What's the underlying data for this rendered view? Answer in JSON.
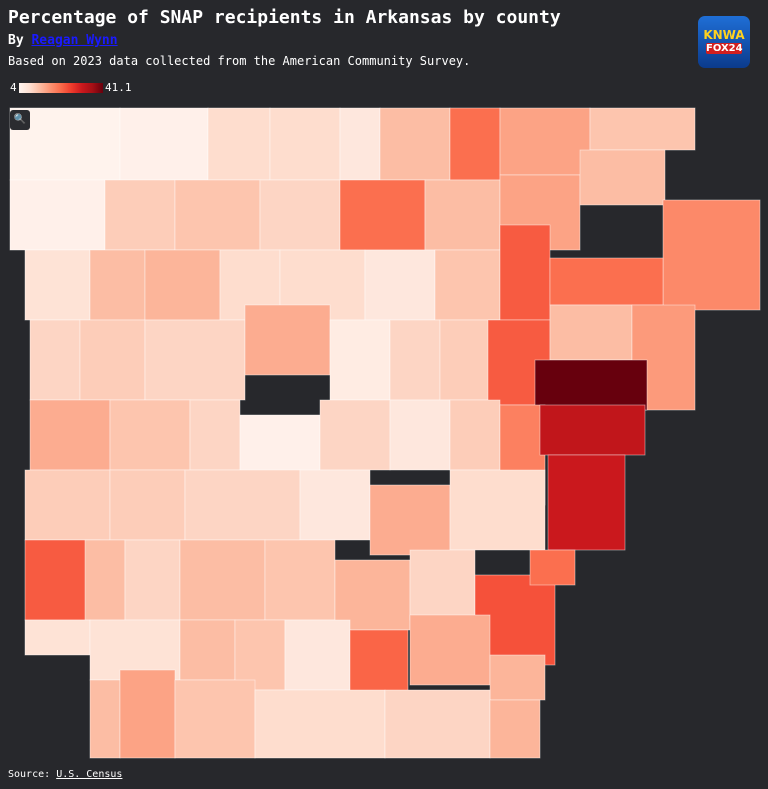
{
  "header": {
    "title": "Percentage of SNAP recipients in Arkansas by county",
    "byline_prefix": "By",
    "author": "Reagan Wynn",
    "subtitle": "Based on 2023 data collected from the American Community Survey."
  },
  "logo": {
    "line1": "KNWA",
    "line2": "FOX24"
  },
  "legend": {
    "min": 4,
    "max": 41.1,
    "colors": [
      "#fff5f0",
      "#fee0d2",
      "#fcbba1",
      "#fc9272",
      "#fb6a4a",
      "#ef3b2c",
      "#cb181d",
      "#a50f15",
      "#67000d"
    ]
  },
  "map": {
    "regions": [
      {
        "value": 4.5
      },
      {
        "value": 5
      },
      {
        "value": 9
      },
      {
        "value": 9
      },
      {
        "value": 7
      },
      {
        "value": 13
      },
      {
        "value": 22
      },
      {
        "value": 16
      },
      {
        "value": 12
      },
      {
        "value": 5
      },
      {
        "value": 11
      },
      {
        "value": 12
      },
      {
        "value": 10
      },
      {
        "value": 22
      },
      {
        "value": 13
      },
      {
        "value": 16
      },
      {
        "value": 13
      },
      {
        "value": 19
      },
      {
        "value": 8
      },
      {
        "value": 13
      },
      {
        "value": 14
      },
      {
        "value": 9
      },
      {
        "value": 9
      },
      {
        "value": 7
      },
      {
        "value": 12
      },
      {
        "value": 24
      },
      {
        "value": 22
      },
      {
        "value": 10
      },
      {
        "value": 11
      },
      {
        "value": 10
      },
      {
        "value": 15
      },
      {
        "value": 6
      },
      {
        "value": 10
      },
      {
        "value": 11
      },
      {
        "value": 24
      },
      {
        "value": 13
      },
      {
        "value": 17
      },
      {
        "value": 41.1
      },
      {
        "value": 15
      },
      {
        "value": 12
      },
      {
        "value": 10
      },
      {
        "value": 5
      },
      {
        "value": 10
      },
      {
        "value": 7
      },
      {
        "value": 11
      },
      {
        "value": 20
      },
      {
        "value": 33
      },
      {
        "value": 11
      },
      {
        "value": 11
      },
      {
        "value": 10
      },
      {
        "value": 7
      },
      {
        "value": 15
      },
      {
        "value": 9
      },
      {
        "value": 32
      },
      {
        "value": 24
      },
      {
        "value": 13
      },
      {
        "value": 10
      },
      {
        "value": 13
      },
      {
        "value": 12
      },
      {
        "value": 14
      },
      {
        "value": 10
      },
      {
        "value": 25
      },
      {
        "value": 22
      },
      {
        "value": 8
      },
      {
        "value": 8
      },
      {
        "value": 13
      },
      {
        "value": 12
      },
      {
        "value": 7
      },
      {
        "value": 23
      },
      {
        "value": 15
      },
      {
        "value": 14
      },
      {
        "value": 13
      },
      {
        "value": 16
      },
      {
        "value": 12
      },
      {
        "value": 9
      },
      {
        "value": 10
      },
      {
        "value": 14
      }
    ]
  },
  "footer": {
    "source_prefix": "Source:",
    "source": "U.S. Census"
  }
}
